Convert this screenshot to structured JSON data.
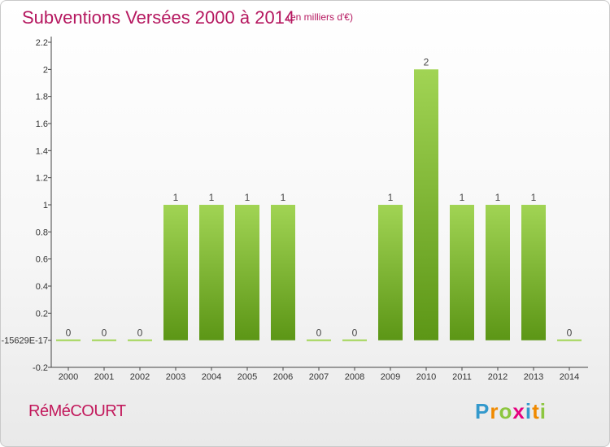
{
  "title": "Subventions Versées 2000 à 2014",
  "subtitle": "(en milliers d'€)",
  "commune": "RéMéCOURT",
  "logo": {
    "letters": [
      "P",
      "r",
      "o",
      "x",
      "i",
      "t",
      "i"
    ],
    "colors": [
      "#3399cc",
      "#f08a00",
      "#8cc63f",
      "#e5007e",
      "#3399cc",
      "#f08a00",
      "#8cc63f"
    ]
  },
  "colors": {
    "bar_top": "#a1d454",
    "bar_bottom": "#5c9616",
    "title": "#b5175f"
  },
  "chart_data": {
    "type": "bar",
    "title": "Subventions Versées 2000 à 2014",
    "subtitle": "(en milliers d'€)",
    "categories": [
      "2000",
      "2001",
      "2002",
      "2003",
      "2004",
      "2005",
      "2006",
      "2007",
      "2008",
      "2009",
      "2010",
      "2011",
      "2012",
      "2013",
      "2014"
    ],
    "values": [
      0,
      0,
      0,
      1,
      1,
      1,
      1,
      0,
      0,
      1,
      2,
      1,
      1,
      1,
      0
    ],
    "value_labels": [
      "0",
      "0",
      "0",
      "1",
      "1",
      "1",
      "1",
      "0",
      "0",
      "1",
      "2",
      "1",
      "1",
      "1",
      "0"
    ],
    "y_ticks": [
      "-0.2",
      "-15629E-17",
      "0.2",
      "0.4",
      "0.6",
      "0.8",
      "1",
      "1.2",
      "1.4",
      "1.6",
      "1.8",
      "2",
      "2.2"
    ],
    "y_tick_values": [
      -0.2,
      0,
      0.2,
      0.4,
      0.6,
      0.8,
      1,
      1.2,
      1.4,
      1.6,
      1.8,
      2,
      2.2
    ],
    "ylim": [
      -0.2,
      2.2
    ],
    "grid": false,
    "legend": "none"
  }
}
